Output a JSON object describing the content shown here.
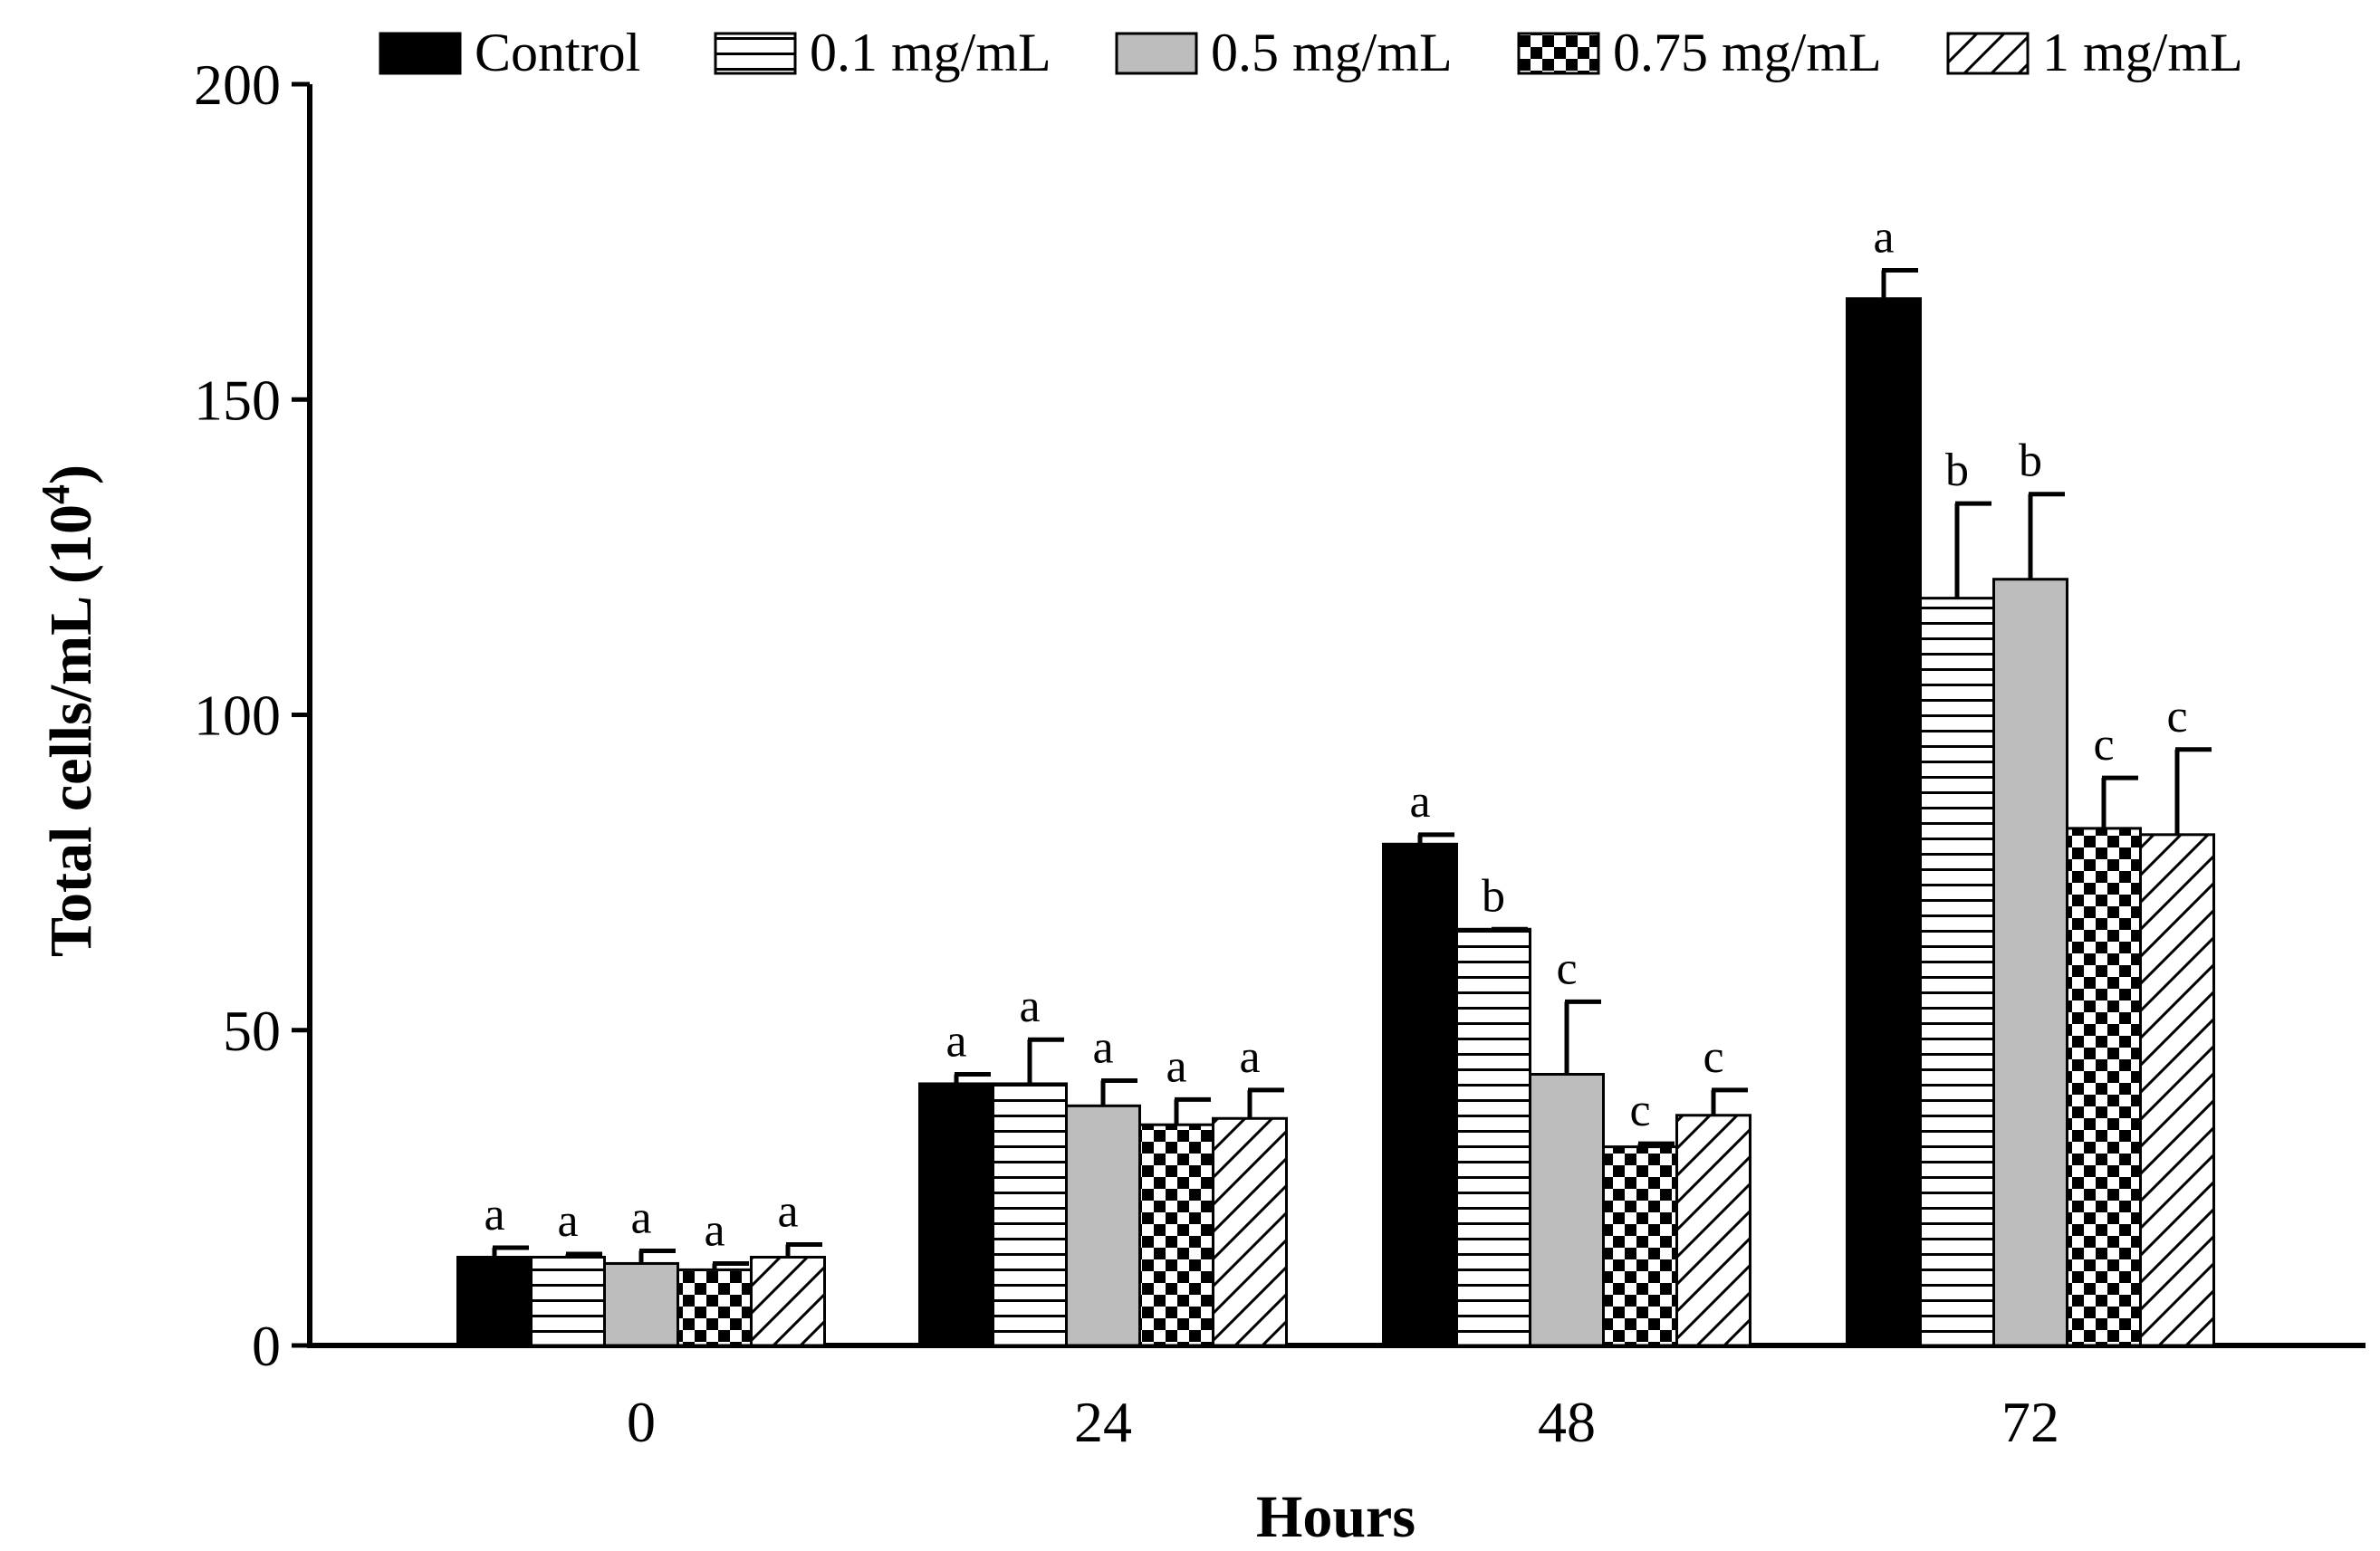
{
  "chart_data": {
    "type": "bar",
    "title": "",
    "xlabel": "Hours",
    "ylabel_main": "Total cells/mL (10",
    "ylabel_sup": "4",
    "ylabel_end": ")",
    "ylim": [
      0,
      200
    ],
    "yticks": [
      "0",
      "50",
      "100",
      "150",
      "200"
    ],
    "categories": [
      "0",
      "24",
      "48",
      "72"
    ],
    "legend_position": "top",
    "series": [
      {
        "name": "Control",
        "pattern": "solid-black",
        "values": [
          14,
          41.5,
          79.5,
          166
        ],
        "errors": [
          1.5,
          1.5,
          1.5,
          4.5
        ],
        "labels": [
          "a",
          "a",
          "a",
          "a"
        ]
      },
      {
        "name": "0.1 mg/mL",
        "pattern": "horizontal-lines",
        "values": [
          14,
          41.5,
          66,
          118.5
        ],
        "errors": [
          0.5,
          7,
          0,
          15
        ],
        "labels": [
          "a",
          "a",
          "b",
          "b"
        ]
      },
      {
        "name": "0.5 mg/mL",
        "pattern": "solid-gray",
        "values": [
          13,
          38,
          43,
          121.5
        ],
        "errors": [
          2,
          4,
          11.5,
          13.5
        ],
        "labels": [
          "a",
          "a",
          "c",
          "b"
        ]
      },
      {
        "name": "0.75 mg/mL",
        "pattern": "checker",
        "values": [
          12,
          35,
          31.5,
          82
        ],
        "errors": [
          1,
          4,
          0.5,
          8
        ],
        "labels": [
          "a",
          "a",
          "c",
          "c"
        ]
      },
      {
        "name": "1 mg/mL",
        "pattern": "diagonal-lines",
        "values": [
          14,
          36,
          36.5,
          81
        ],
        "errors": [
          2,
          4.5,
          4,
          13.5
        ],
        "labels": [
          "a",
          "a",
          "c",
          "c"
        ]
      }
    ],
    "colors": {
      "black": "#000000",
      "gray": "#bdbdbd",
      "background": "#ffffff"
    }
  }
}
